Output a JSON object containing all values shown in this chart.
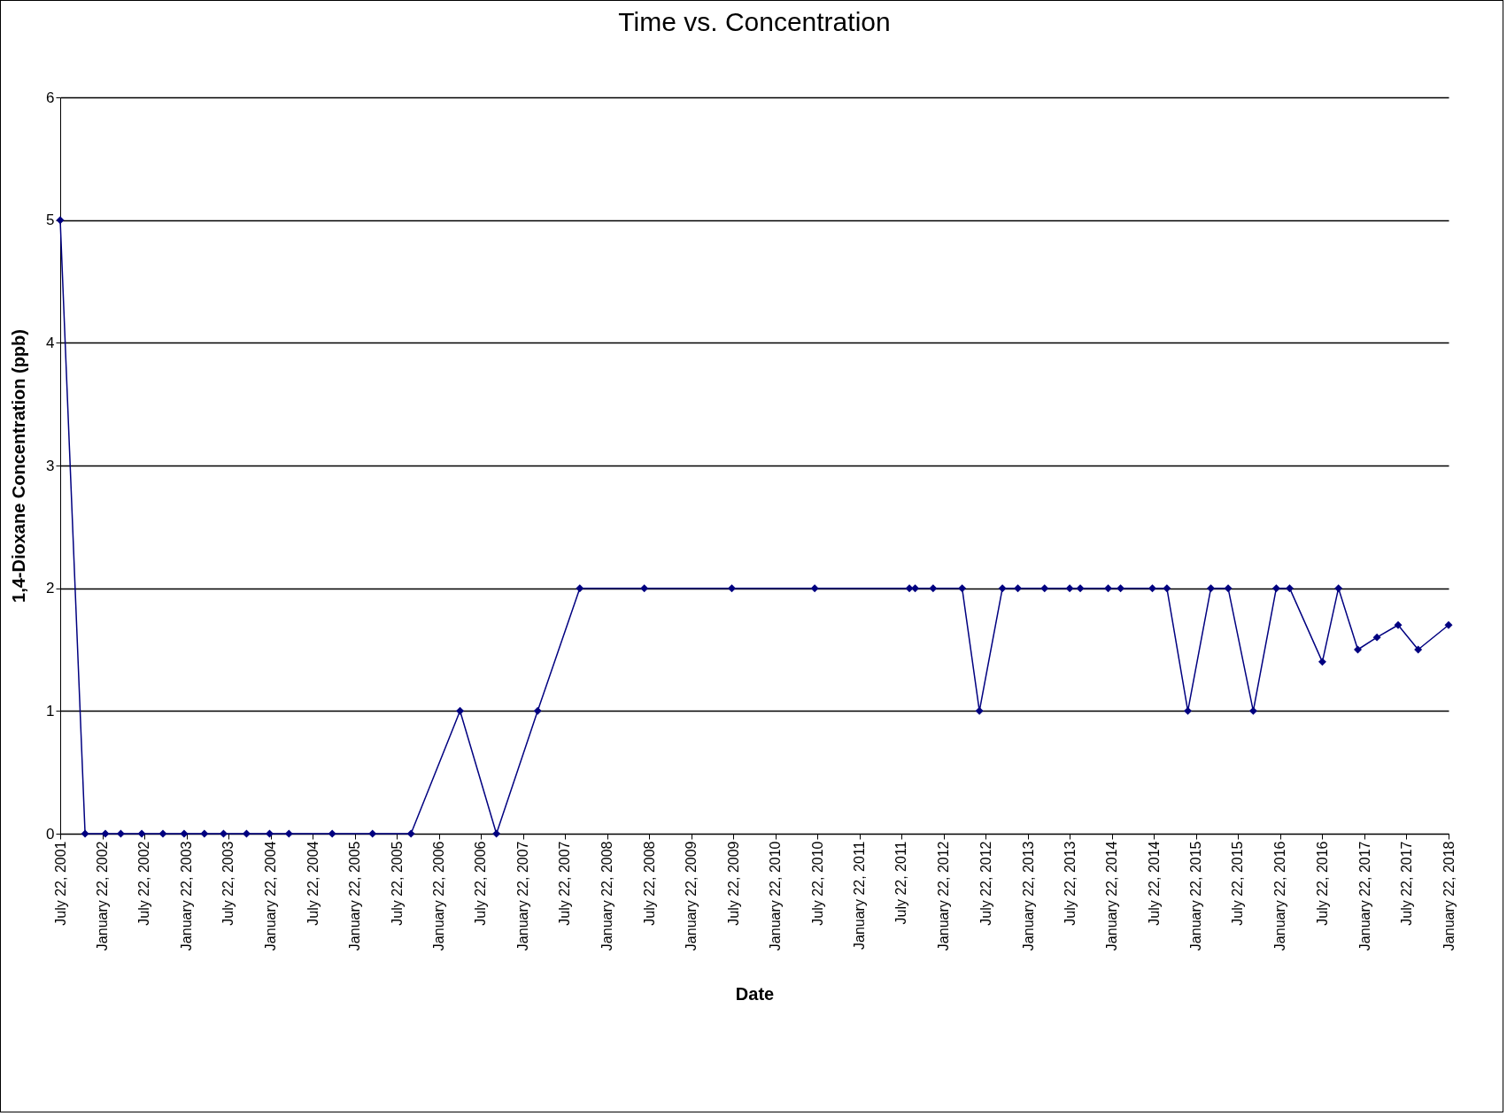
{
  "chart_data": {
    "type": "line",
    "title": "Time vs. Concentration",
    "xlabel": "Date",
    "ylabel": "1,4-Dioxane Concentration (ppb)",
    "x": [
      "2001-07-22",
      "2001-11-07",
      "2002-02-03",
      "2002-04-11",
      "2002-07-11",
      "2002-10-11",
      "2003-01-11",
      "2003-04-09",
      "2003-07-01",
      "2003-10-09",
      "2004-01-17",
      "2004-04-10",
      "2004-10-15",
      "2005-04-08",
      "2005-09-22",
      "2006-04-23",
      "2006-09-28",
      "2007-03-26",
      "2007-09-25",
      "2008-07-01",
      "2009-07-16",
      "2010-07-11",
      "2011-08-26",
      "2011-09-20",
      "2011-12-07",
      "2012-04-11",
      "2012-06-25",
      "2012-10-03",
      "2012-12-09",
      "2013-04-04",
      "2013-07-22",
      "2013-09-06",
      "2014-01-05",
      "2014-02-28",
      "2014-07-16",
      "2014-09-17",
      "2014-12-17",
      "2015-03-27",
      "2015-06-10",
      "2015-09-27",
      "2016-01-05",
      "2016-03-03",
      "2016-07-23",
      "2016-10-01",
      "2016-12-24",
      "2017-03-17",
      "2017-06-17",
      "2017-09-12",
      "2018-01-22"
    ],
    "series": [
      {
        "color": "#000080",
        "values": [
          5,
          0,
          0,
          0,
          0,
          0,
          0,
          0,
          0,
          0,
          0,
          0,
          0,
          0,
          0,
          1,
          0,
          1,
          2,
          2,
          2,
          2,
          2,
          2,
          2,
          2,
          1,
          2,
          2,
          2,
          2,
          2,
          2,
          2,
          2,
          2,
          1,
          2,
          2,
          1,
          2,
          2,
          1.4,
          2,
          1.5,
          1.6,
          1.7,
          1.5,
          1.7
        ]
      }
    ],
    "xlim": [
      "2001-07-22",
      "2018-01-22"
    ],
    "xticks": [
      {
        "value": "2001-07-22",
        "label": "July 22, 2001"
      },
      {
        "value": "2002-01-22",
        "label": "January 22, 2002"
      },
      {
        "value": "2002-07-22",
        "label": "July 22, 2002"
      },
      {
        "value": "2003-01-22",
        "label": "January 22, 2003"
      },
      {
        "value": "2003-07-22",
        "label": "July 22, 2003"
      },
      {
        "value": "2004-01-22",
        "label": "January 22, 2004"
      },
      {
        "value": "2004-07-22",
        "label": "July 22, 2004"
      },
      {
        "value": "2005-01-22",
        "label": "January 22, 2005"
      },
      {
        "value": "2005-07-22",
        "label": "July 22, 2005"
      },
      {
        "value": "2006-01-22",
        "label": "January 22, 2006"
      },
      {
        "value": "2006-07-22",
        "label": "July 22, 2006"
      },
      {
        "value": "2007-01-22",
        "label": "January 22, 2007"
      },
      {
        "value": "2007-07-22",
        "label": "July 22, 2007"
      },
      {
        "value": "2008-01-22",
        "label": "January 22, 2008"
      },
      {
        "value": "2008-07-22",
        "label": "July 22, 2008"
      },
      {
        "value": "2009-01-22",
        "label": "January 22, 2009"
      },
      {
        "value": "2009-07-22",
        "label": "July 22, 2009"
      },
      {
        "value": "2010-01-22",
        "label": "January 22, 2010"
      },
      {
        "value": "2010-07-22",
        "label": "July 22, 2010"
      },
      {
        "value": "2011-01-22",
        "label": "January 22, 2011"
      },
      {
        "value": "2011-07-22",
        "label": "July 22, 2011"
      },
      {
        "value": "2012-01-22",
        "label": "January 22, 2012"
      },
      {
        "value": "2012-07-22",
        "label": "July 22, 2012"
      },
      {
        "value": "2013-01-22",
        "label": "January 22, 2013"
      },
      {
        "value": "2013-07-22",
        "label": "July 22, 2013"
      },
      {
        "value": "2014-01-22",
        "label": "January 22, 2014"
      },
      {
        "value": "2014-07-22",
        "label": "July 22, 2014"
      },
      {
        "value": "2015-01-22",
        "label": "January 22, 2015"
      },
      {
        "value": "2015-07-22",
        "label": "July 22, 2015"
      },
      {
        "value": "2016-01-22",
        "label": "January 22, 2016"
      },
      {
        "value": "2016-07-22",
        "label": "July 22, 2016"
      },
      {
        "value": "2017-01-22",
        "label": "January 22, 2017"
      },
      {
        "value": "2017-07-22",
        "label": "July 22, 2017"
      },
      {
        "value": "2018-01-22",
        "label": "January 22, 2018"
      }
    ],
    "ylim": [
      0,
      6
    ],
    "yticks": [
      0,
      1,
      2,
      3,
      4,
      5,
      6
    ],
    "grid": "y",
    "marker": "diamond",
    "line_style": "solid",
    "legend": false
  }
}
